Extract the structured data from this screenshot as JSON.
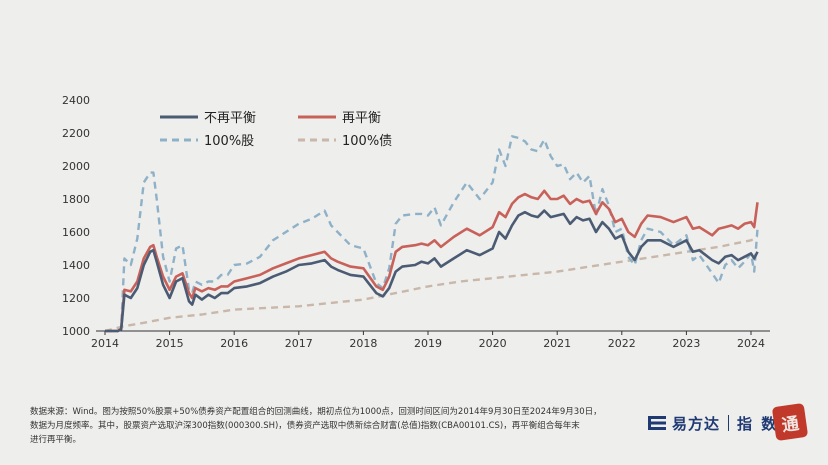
{
  "chart_data": {
    "type": "line",
    "title": "",
    "xlabel": "",
    "ylabel": "",
    "xlim": [
      2014.0,
      2024.3
    ],
    "ylim": [
      1000,
      2400
    ],
    "y_ticks": [
      1000,
      1200,
      1400,
      1600,
      1800,
      2000,
      2200,
      2400
    ],
    "x_ticks": [
      "2014",
      "2015",
      "2016",
      "2017",
      "2018",
      "2019",
      "2020",
      "2021",
      "2022",
      "2023",
      "2024"
    ],
    "grid": false,
    "legend_position": "top-left",
    "series": [
      {
        "name": "不再平衡",
        "color": "#4a5b73",
        "dash": "solid",
        "x": [
          2014.0,
          2014.2,
          2014.25,
          2014.3,
          2014.4,
          2014.5,
          2014.6,
          2014.7,
          2014.75,
          2014.8,
          2014.9,
          2015.0,
          2015.1,
          2015.2,
          2015.3,
          2015.35,
          2015.4,
          2015.5,
          2015.6,
          2015.7,
          2015.8,
          2015.9,
          2016.0,
          2016.2,
          2016.4,
          2016.6,
          2016.8,
          2017.0,
          2017.2,
          2017.4,
          2017.5,
          2017.6,
          2017.8,
          2018.0,
          2018.2,
          2018.3,
          2018.4,
          2018.5,
          2018.6,
          2018.8,
          2018.9,
          2019.0,
          2019.1,
          2019.2,
          2019.4,
          2019.6,
          2019.8,
          2020.0,
          2020.1,
          2020.2,
          2020.3,
          2020.4,
          2020.5,
          2020.6,
          2020.7,
          2020.8,
          2020.9,
          2021.0,
          2021.1,
          2021.2,
          2021.3,
          2021.4,
          2021.5,
          2021.6,
          2021.7,
          2021.8,
          2021.9,
          2022.0,
          2022.1,
          2022.2,
          2022.3,
          2022.4,
          2022.6,
          2022.8,
          2023.0,
          2023.1,
          2023.2,
          2023.4,
          2023.5,
          2023.6,
          2023.7,
          2023.8,
          2023.9,
          2024.0,
          2024.05,
          2024.1
        ],
        "y": [
          1000,
          1000,
          1010,
          1220,
          1200,
          1260,
          1400,
          1480,
          1490,
          1420,
          1280,
          1200,
          1300,
          1320,
          1180,
          1160,
          1220,
          1190,
          1220,
          1200,
          1230,
          1230,
          1260,
          1270,
          1290,
          1330,
          1360,
          1400,
          1410,
          1430,
          1390,
          1370,
          1340,
          1330,
          1230,
          1210,
          1260,
          1360,
          1390,
          1400,
          1420,
          1410,
          1440,
          1390,
          1440,
          1490,
          1460,
          1500,
          1600,
          1560,
          1640,
          1700,
          1720,
          1700,
          1690,
          1730,
          1690,
          1700,
          1710,
          1650,
          1690,
          1670,
          1680,
          1600,
          1660,
          1620,
          1560,
          1580,
          1480,
          1430,
          1510,
          1550,
          1550,
          1510,
          1550,
          1480,
          1490,
          1430,
          1410,
          1450,
          1460,
          1430,
          1450,
          1470,
          1440,
          1480
        ]
      },
      {
        "name": "再平衡",
        "color": "#c8615a",
        "dash": "solid",
        "x": [
          2014.0,
          2014.2,
          2014.25,
          2014.3,
          2014.4,
          2014.5,
          2014.6,
          2014.7,
          2014.75,
          2014.8,
          2014.9,
          2015.0,
          2015.1,
          2015.2,
          2015.3,
          2015.35,
          2015.4,
          2015.5,
          2015.6,
          2015.7,
          2015.8,
          2015.9,
          2016.0,
          2016.2,
          2016.4,
          2016.6,
          2016.8,
          2017.0,
          2017.2,
          2017.4,
          2017.5,
          2017.6,
          2017.8,
          2018.0,
          2018.2,
          2018.3,
          2018.4,
          2018.5,
          2018.6,
          2018.8,
          2018.9,
          2019.0,
          2019.1,
          2019.2,
          2019.4,
          2019.6,
          2019.8,
          2020.0,
          2020.1,
          2020.2,
          2020.3,
          2020.4,
          2020.5,
          2020.6,
          2020.7,
          2020.8,
          2020.9,
          2021.0,
          2021.1,
          2021.2,
          2021.3,
          2021.4,
          2021.5,
          2021.6,
          2021.7,
          2021.8,
          2021.9,
          2022.0,
          2022.1,
          2022.2,
          2022.3,
          2022.4,
          2022.6,
          2022.8,
          2023.0,
          2023.1,
          2023.2,
          2023.4,
          2023.5,
          2023.6,
          2023.7,
          2023.8,
          2023.9,
          2024.0,
          2024.05,
          2024.1
        ],
        "y": [
          1000,
          1000,
          1015,
          1250,
          1240,
          1300,
          1440,
          1510,
          1520,
          1450,
          1330,
          1250,
          1330,
          1350,
          1230,
          1200,
          1260,
          1240,
          1260,
          1250,
          1270,
          1270,
          1300,
          1320,
          1340,
          1380,
          1410,
          1440,
          1460,
          1480,
          1440,
          1420,
          1390,
          1380,
          1270,
          1250,
          1330,
          1480,
          1510,
          1520,
          1530,
          1520,
          1550,
          1510,
          1570,
          1620,
          1580,
          1630,
          1720,
          1690,
          1770,
          1810,
          1830,
          1810,
          1800,
          1850,
          1800,
          1800,
          1820,
          1770,
          1800,
          1780,
          1790,
          1710,
          1780,
          1740,
          1660,
          1680,
          1600,
          1570,
          1650,
          1700,
          1690,
          1660,
          1690,
          1620,
          1630,
          1580,
          1620,
          1630,
          1640,
          1620,
          1650,
          1660,
          1630,
          1780
        ]
      },
      {
        "name": "100%股",
        "color": "#8fb1c8",
        "dash": "dashed",
        "x": [
          2014.0,
          2014.2,
          2014.25,
          2014.3,
          2014.4,
          2014.5,
          2014.6,
          2014.7,
          2014.75,
          2014.8,
          2014.9,
          2015.0,
          2015.1,
          2015.2,
          2015.3,
          2015.35,
          2015.4,
          2015.5,
          2015.6,
          2015.7,
          2015.8,
          2015.9,
          2016.0,
          2016.2,
          2016.4,
          2016.6,
          2016.8,
          2017.0,
          2017.2,
          2017.4,
          2017.5,
          2017.6,
          2017.8,
          2018.0,
          2018.2,
          2018.3,
          2018.4,
          2018.5,
          2018.6,
          2018.8,
          2018.9,
          2019.0,
          2019.1,
          2019.2,
          2019.4,
          2019.6,
          2019.8,
          2020.0,
          2020.1,
          2020.2,
          2020.3,
          2020.4,
          2020.5,
          2020.6,
          2020.7,
          2020.8,
          2020.9,
          2021.0,
          2021.1,
          2021.2,
          2021.3,
          2021.4,
          2021.5,
          2021.6,
          2021.7,
          2021.8,
          2021.9,
          2022.0,
          2022.1,
          2022.2,
          2022.3,
          2022.4,
          2022.6,
          2022.8,
          2023.0,
          2023.1,
          2023.2,
          2023.4,
          2023.5,
          2023.6,
          2023.7,
          2023.8,
          2023.9,
          2024.0,
          2024.05,
          2024.1
        ],
        "y": [
          1000,
          1000,
          1020,
          1440,
          1400,
          1560,
          1900,
          1960,
          1960,
          1800,
          1450,
          1300,
          1500,
          1520,
          1250,
          1230,
          1300,
          1280,
          1300,
          1300,
          1340,
          1340,
          1400,
          1410,
          1450,
          1550,
          1600,
          1650,
          1680,
          1730,
          1640,
          1600,
          1520,
          1500,
          1290,
          1260,
          1380,
          1650,
          1700,
          1710,
          1710,
          1700,
          1750,
          1640,
          1780,
          1900,
          1800,
          1900,
          2100,
          2000,
          2180,
          2170,
          2150,
          2100,
          2090,
          2160,
          2060,
          2000,
          2010,
          1920,
          1960,
          1900,
          1940,
          1700,
          1860,
          1760,
          1600,
          1620,
          1450,
          1400,
          1550,
          1620,
          1600,
          1520,
          1580,
          1430,
          1460,
          1350,
          1290,
          1400,
          1430,
          1380,
          1420,
          1470,
          1360,
          1620
        ]
      },
      {
        "name": "100%债",
        "color": "#c9b7aa",
        "dash": "dashed",
        "x": [
          2014.0,
          2014.3,
          2014.6,
          2015.0,
          2015.5,
          2016.0,
          2016.5,
          2017.0,
          2017.5,
          2018.0,
          2018.5,
          2019.0,
          2019.5,
          2020.0,
          2020.5,
          2021.0,
          2021.5,
          2022.0,
          2022.5,
          2023.0,
          2023.5,
          2024.0,
          2024.1
        ],
        "y": [
          1000,
          1030,
          1050,
          1080,
          1100,
          1130,
          1140,
          1150,
          1170,
          1190,
          1230,
          1270,
          1300,
          1320,
          1340,
          1360,
          1390,
          1420,
          1450,
          1480,
          1510,
          1550,
          1570
        ]
      }
    ]
  },
  "footnote": {
    "line1": "数据来源：Wind。图为按照50%股票+50%债券资产配置组合的回测曲线，期初点位为1000点，回测时间区间为2014年9月30日至2024年9月30日，",
    "line2": "数据为月度频率。其中，股票资产选取沪深300指数(000300.SH)，债券资产选取中债新综合财富(总值)指数(CBA00101.CS)，再平衡组合每年末",
    "line3": "进行再平衡。"
  },
  "brand": {
    "name": "易方达",
    "sub": "指 数",
    "seal": "通"
  },
  "colors": {
    "background": "#eeeeec",
    "brand": "#1f3a73",
    "seal": "#c0392b"
  }
}
